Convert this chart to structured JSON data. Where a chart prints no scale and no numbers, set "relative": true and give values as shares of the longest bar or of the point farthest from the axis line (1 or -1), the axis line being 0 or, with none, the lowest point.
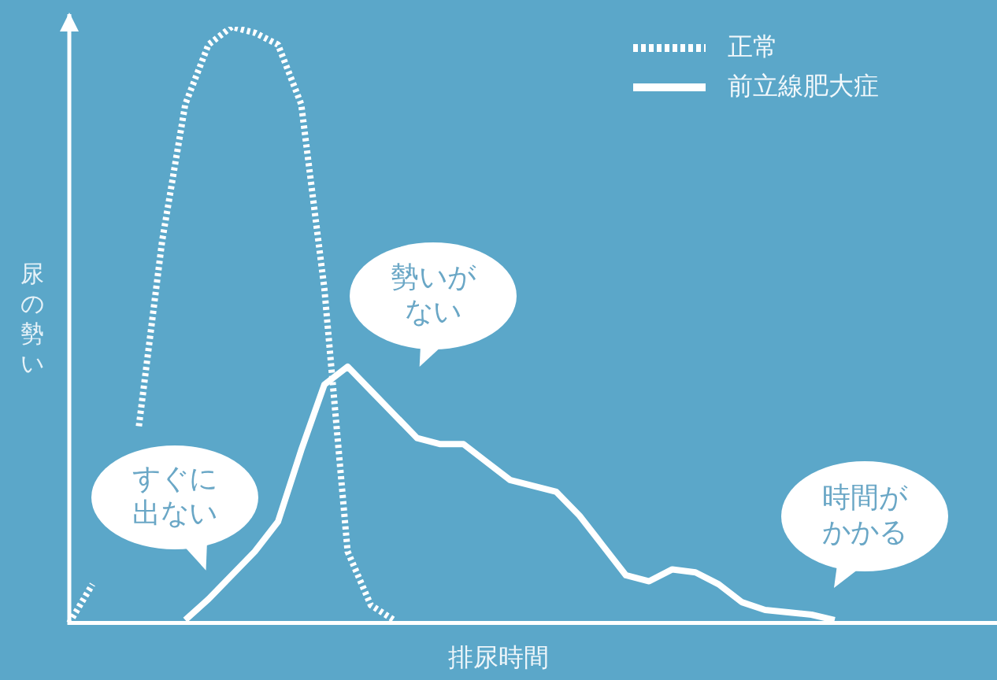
{
  "chart_data": {
    "type": "line",
    "relative": true,
    "xlabel": "排尿時間",
    "ylabel": "尿の勢い",
    "legend": "top right",
    "categories": [
      null,
      null,
      null,
      null,
      null,
      null,
      null,
      null,
      null,
      null,
      null,
      null,
      null,
      null,
      null,
      null,
      null,
      null,
      null,
      null,
      null,
      null,
      null,
      null,
      null,
      null,
      null,
      null,
      null,
      null,
      null,
      null,
      null,
      null,
      null,
      null,
      null,
      null,
      null,
      null,
      null
    ],
    "series": [
      {
        "name": "正常",
        "color": "#ffffff",
        "line_style": "dotted",
        "values": [
          0.0,
          0.065,
          null,
          0.33,
          0.64,
          0.87,
          0.97,
          1.0,
          0.99,
          0.97,
          0.87,
          0.56,
          0.12,
          0.03,
          0.005,
          null,
          null,
          null,
          null,
          null,
          null,
          null,
          null,
          null,
          null,
          null,
          null,
          null,
          null,
          null,
          null,
          null,
          null,
          null,
          null,
          null,
          null,
          null,
          null,
          null,
          null
        ]
      },
      {
        "name": "前立線肥大症",
        "color": "#ffffff",
        "line_style": "solid",
        "values": [
          null,
          null,
          null,
          null,
          null,
          0.005,
          0.04,
          0.08,
          0.12,
          0.17,
          0.29,
          0.4,
          0.43,
          0.39,
          0.35,
          0.31,
          0.3,
          0.3,
          0.27,
          0.24,
          0.23,
          0.22,
          0.18,
          0.13,
          0.08,
          0.07,
          0.09,
          0.085,
          0.065,
          0.035,
          0.022,
          0.018,
          0.014,
          0.005,
          null,
          null,
          null,
          null,
          null,
          null,
          null
        ]
      }
    ],
    "annotations": [
      "すぐに出ない",
      "勢いがない",
      "時間がかかる"
    ]
  }
}
